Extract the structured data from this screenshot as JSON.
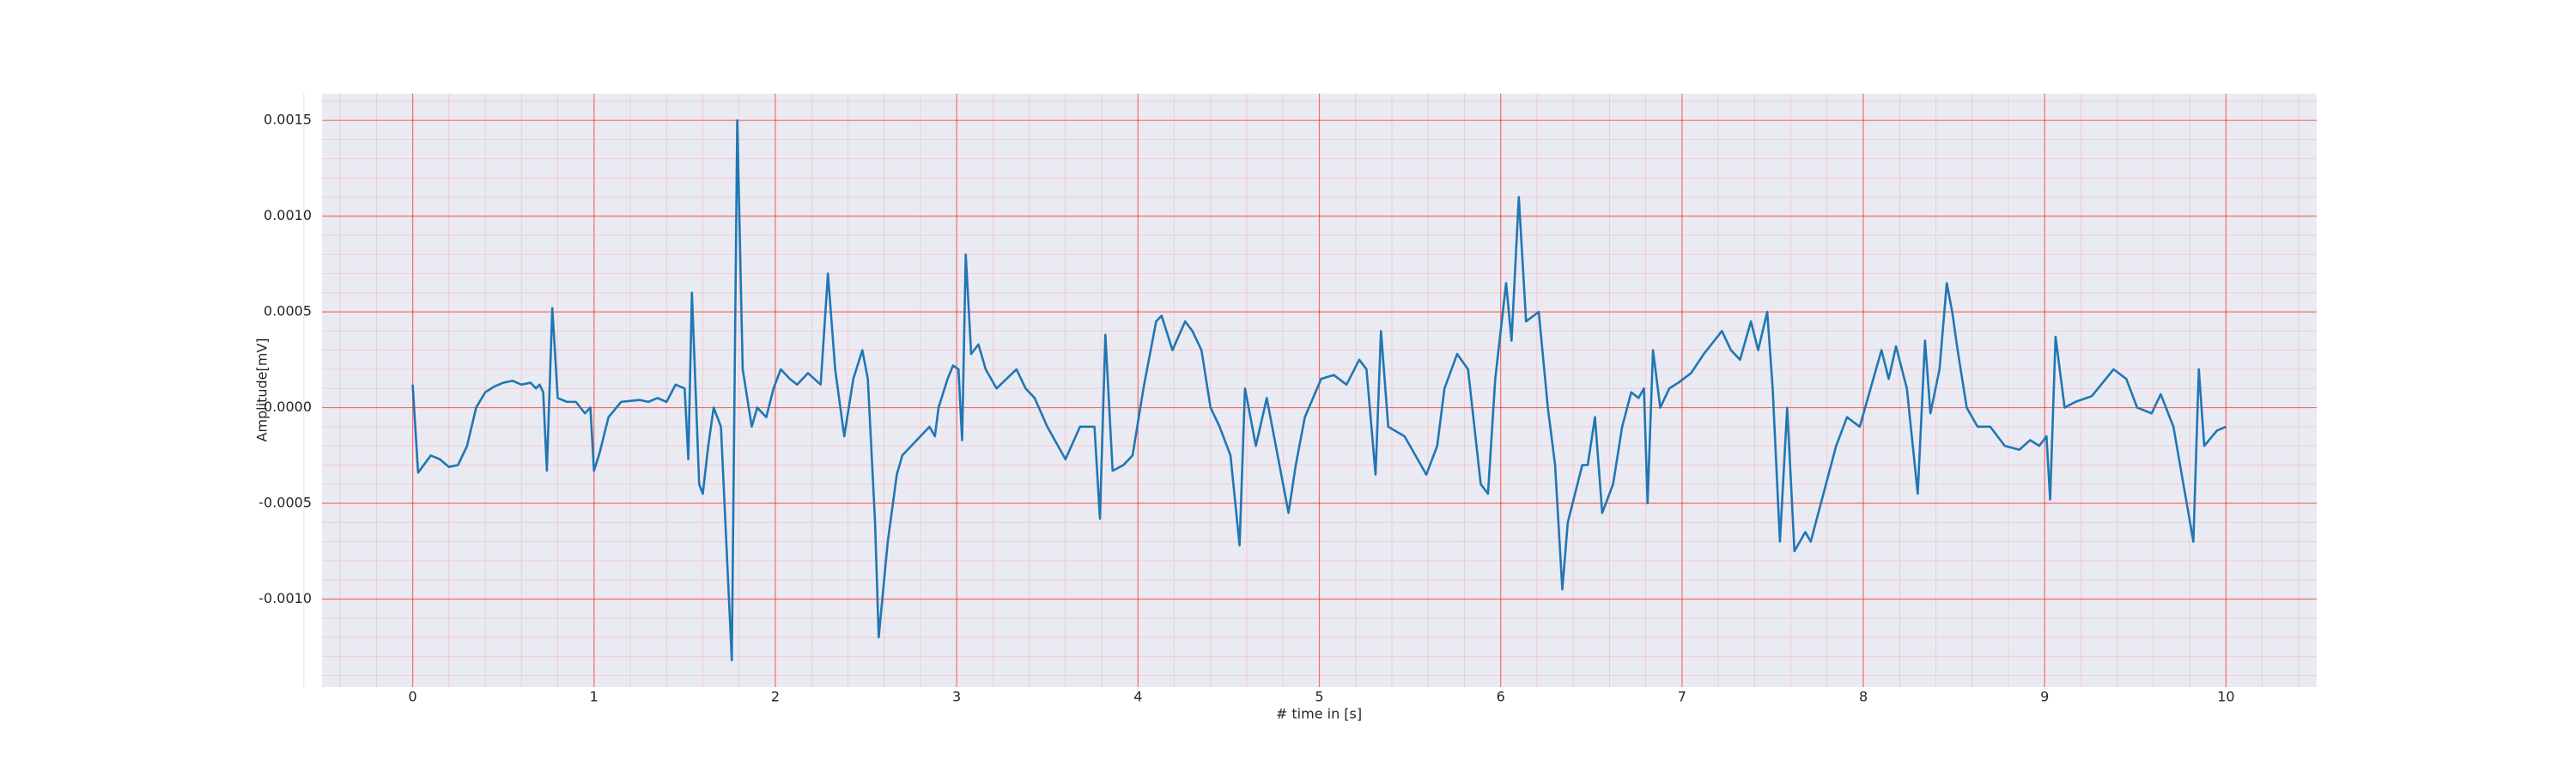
{
  "chart_data": {
    "type": "line",
    "xlabel": "# time in [s]",
    "ylabel": "Amplitude[mV]",
    "color": "#1f77b4",
    "grid": true,
    "minor_grid_divisions": 5,
    "xlim": [
      -0.5,
      10.5
    ],
    "xticks": [
      0,
      1,
      2,
      3,
      4,
      5,
      6,
      7,
      8,
      9,
      10
    ],
    "ylim": [
      -0.00146,
      0.00164
    ],
    "yticks": [
      {
        "value": -0.001,
        "label": "-0.0010"
      },
      {
        "value": -0.0005,
        "label": "-0.0005"
      },
      {
        "value": 0,
        "label": "0.0000"
      },
      {
        "value": 0.0005,
        "label": "0.0005"
      },
      {
        "value": 0.001,
        "label": "0.0010"
      },
      {
        "value": 0.0015,
        "label": "0.0015"
      }
    ],
    "x": [
      0,
      0.03,
      0.1,
      0.15,
      0.2,
      0.25,
      0.3,
      0.35,
      0.4,
      0.45,
      0.5,
      0.55,
      0.6,
      0.65,
      0.68,
      0.7,
      0.72,
      0.74,
      0.77,
      0.8,
      0.85,
      0.9,
      0.95,
      0.98,
      1,
      1.03,
      1.08,
      1.15,
      1.25,
      1.3,
      1.35,
      1.4,
      1.45,
      1.5,
      1.52,
      1.54,
      1.58,
      1.6,
      1.63,
      1.66,
      1.7,
      1.76,
      1.79,
      1.82,
      1.87,
      1.9,
      1.95,
      1.99,
      2.03,
      2.08,
      2.12,
      2.18,
      2.25,
      2.29,
      2.33,
      2.38,
      2.43,
      2.48,
      2.51,
      2.55,
      2.57,
      2.62,
      2.67,
      2.7,
      2.75,
      2.8,
      2.85,
      2.88,
      2.9,
      2.95,
      2.98,
      3.01,
      3.03,
      3.05,
      3.08,
      3.12,
      3.16,
      3.22,
      3.33,
      3.38,
      3.43,
      3.5,
      3.6,
      3.68,
      3.76,
      3.79,
      3.82,
      3.86,
      3.92,
      3.97,
      4.03,
      4.1,
      4.13,
      4.19,
      4.26,
      4.3,
      4.35,
      4.4,
      4.45,
      4.51,
      4.56,
      4.59,
      4.65,
      4.71,
      4.77,
      4.83,
      4.87,
      4.92,
      5.01,
      5.08,
      5.15,
      5.22,
      5.26,
      5.31,
      5.34,
      5.38,
      5.47,
      5.53,
      5.59,
      5.65,
      5.69,
      5.76,
      5.82,
      5.89,
      5.93,
      5.97,
      6.03,
      6.06,
      6.1,
      6.14,
      6.21,
      6.26,
      6.3,
      6.34,
      6.37,
      6.45,
      6.48,
      6.52,
      6.56,
      6.62,
      6.67,
      6.72,
      6.76,
      6.79,
      6.81,
      6.84,
      6.88,
      6.93,
      6.98,
      7.05,
      7.12,
      7.22,
      7.27,
      7.32,
      7.38,
      7.42,
      7.47,
      7.5,
      7.54,
      7.58,
      7.62,
      7.68,
      7.71,
      7.85,
      7.91,
      7.98,
      8.1,
      8.14,
      8.18,
      8.24,
      8.3,
      8.34,
      8.37,
      8.42,
      8.46,
      8.49,
      8.52,
      8.57,
      8.63,
      8.7,
      8.78,
      8.86,
      8.92,
      8.97,
      9.01,
      9.03,
      9.06,
      9.11,
      9.17,
      9.26,
      9.38,
      9.45,
      9.51,
      9.59,
      9.64,
      9.71,
      9.82,
      9.85,
      9.88,
      9.95,
      10
    ],
    "values": [
      0.00012,
      -0.00034,
      -0.00025,
      -0.00027,
      -0.00031,
      -0.0003,
      -0.0002,
      0,
      8e-05,
      0.00011,
      0.00013,
      0.00014,
      0.00012,
      0.00013,
      0.0001,
      0.00012,
      8e-05,
      -0.00033,
      0.00052,
      5e-05,
      3e-05,
      3e-05,
      -3e-05,
      0,
      -0.00033,
      -0.00024,
      -5e-05,
      3e-05,
      4e-05,
      3e-05,
      5e-05,
      3e-05,
      0.00012,
      0.0001,
      -0.00027,
      0.0006,
      -0.0004,
      -0.00045,
      -0.0002,
      0,
      -0.0001,
      -0.00132,
      0.0015,
      0.0002,
      -0.0001,
      0,
      -5e-05,
      0.0001,
      0.0002,
      0.00015,
      0.00012,
      0.00018,
      0.00012,
      0.0007,
      0.0002,
      -0.00015,
      0.00015,
      0.0003,
      0.00015,
      -0.0006,
      -0.0012,
      -0.0007,
      -0.00035,
      -0.00025,
      -0.0002,
      -0.00015,
      -0.0001,
      -0.00015,
      0,
      0.00015,
      0.00022,
      0.0002,
      -0.00017,
      0.0008,
      0.00028,
      0.00033,
      0.0002,
      0.0001,
      0.0002,
      0.0001,
      5e-05,
      -0.0001,
      -0.00027,
      -0.0001,
      -0.0001,
      -0.00058,
      0.00038,
      -0.00033,
      -0.0003,
      -0.00025,
      0.0001,
      0.00045,
      0.00048,
      0.0003,
      0.00045,
      0.0004,
      0.0003,
      0,
      -0.0001,
      -0.00025,
      -0.00072,
      0.0001,
      -0.0002,
      5e-05,
      -0.00025,
      -0.00055,
      -0.0003,
      -5e-05,
      0.00015,
      0.00017,
      0.00012,
      0.00025,
      0.0002,
      -0.00035,
      0.0004,
      -0.0001,
      -0.00015,
      -0.00025,
      -0.00035,
      -0.0002,
      0.0001,
      0.00028,
      0.0002,
      -0.0004,
      -0.00045,
      0.00015,
      0.00065,
      0.00035,
      0.0011,
      0.00045,
      0.0005,
      0,
      -0.0003,
      -0.00095,
      -0.0006,
      -0.0003,
      -0.0003,
      -5e-05,
      -0.00055,
      -0.0004,
      -0.0001,
      8e-05,
      5e-05,
      0.0001,
      -0.0005,
      0.0003,
      0,
      0.0001,
      0.00013,
      0.00018,
      0.00028,
      0.0004,
      0.0003,
      0.00025,
      0.00045,
      0.0003,
      0.0005,
      0.0001,
      -0.0007,
      0,
      -0.00075,
      -0.00065,
      -0.0007,
      -0.0002,
      -5e-05,
      -0.0001,
      0.0003,
      0.00015,
      0.00032,
      0.0001,
      -0.00045,
      0.00035,
      -3e-05,
      0.0002,
      0.00065,
      0.0005,
      0.0003,
      0,
      -0.0001,
      -0.0001,
      -0.0002,
      -0.00022,
      -0.00017,
      -0.0002,
      -0.00015,
      -0.00048,
      0.00037,
      0,
      3e-05,
      6e-05,
      0.0002,
      0.00015,
      0,
      -3e-05,
      7e-05,
      -0.0001,
      -0.0007,
      0.0002,
      -0.0002,
      -0.00012,
      -0.0001
    ]
  }
}
